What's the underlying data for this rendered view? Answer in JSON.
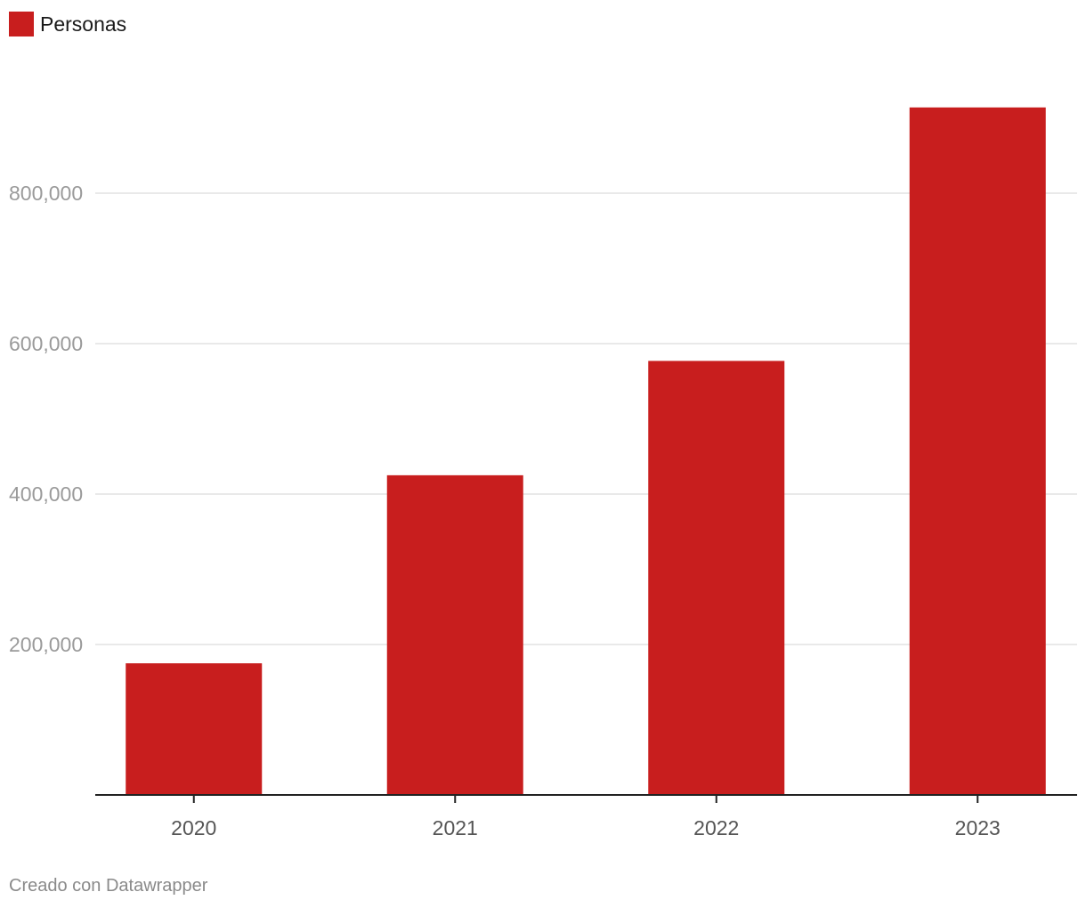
{
  "legend": {
    "label": "Personas",
    "color": "#c81e1e"
  },
  "footer": {
    "credit": "Creado con Datawrapper"
  },
  "chart_data": {
    "type": "bar",
    "title": "",
    "xlabel": "",
    "ylabel": "",
    "categories": [
      "2020",
      "2021",
      "2022",
      "2023"
    ],
    "series": [
      {
        "name": "Personas",
        "values": [
          175000,
          425000,
          577000,
          914000
        ],
        "color": "#c81e1e"
      }
    ],
    "ylim": [
      0,
      1000000
    ],
    "yticks": [
      200000,
      400000,
      600000,
      800000
    ],
    "ytick_labels": [
      "200,000",
      "400,000",
      "600,000",
      "800,000"
    ],
    "grid": true,
    "legend_position": "top-left"
  }
}
